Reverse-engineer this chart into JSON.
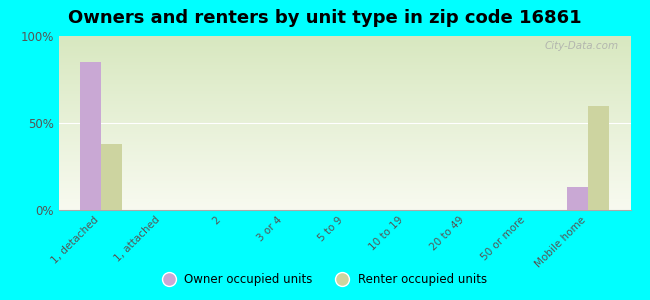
{
  "title": "Owners and renters by unit type in zip code 16861",
  "categories": [
    "1, detached",
    "1, attached",
    "2",
    "3 or 4",
    "5 to 9",
    "10 to 19",
    "20 to 49",
    "50 or more",
    "Mobile home"
  ],
  "owner_values": [
    85,
    0,
    0,
    0,
    0,
    0,
    0,
    0,
    13
  ],
  "renter_values": [
    38,
    0,
    0,
    0,
    0,
    0,
    0,
    0,
    60
  ],
  "owner_color": "#c9a8d4",
  "renter_color": "#cdd4a0",
  "background_color": "#00ffff",
  "plot_bg_top": "#d8e8c0",
  "plot_bg_bottom": "#f8faf0",
  "ylim": [
    0,
    100
  ],
  "yticks": [
    0,
    50,
    100
  ],
  "ytick_labels": [
    "0%",
    "50%",
    "100%"
  ],
  "bar_width": 0.35,
  "title_fontsize": 13,
  "legend_labels": [
    "Owner occupied units",
    "Renter occupied units"
  ],
  "watermark": "City-Data.com"
}
